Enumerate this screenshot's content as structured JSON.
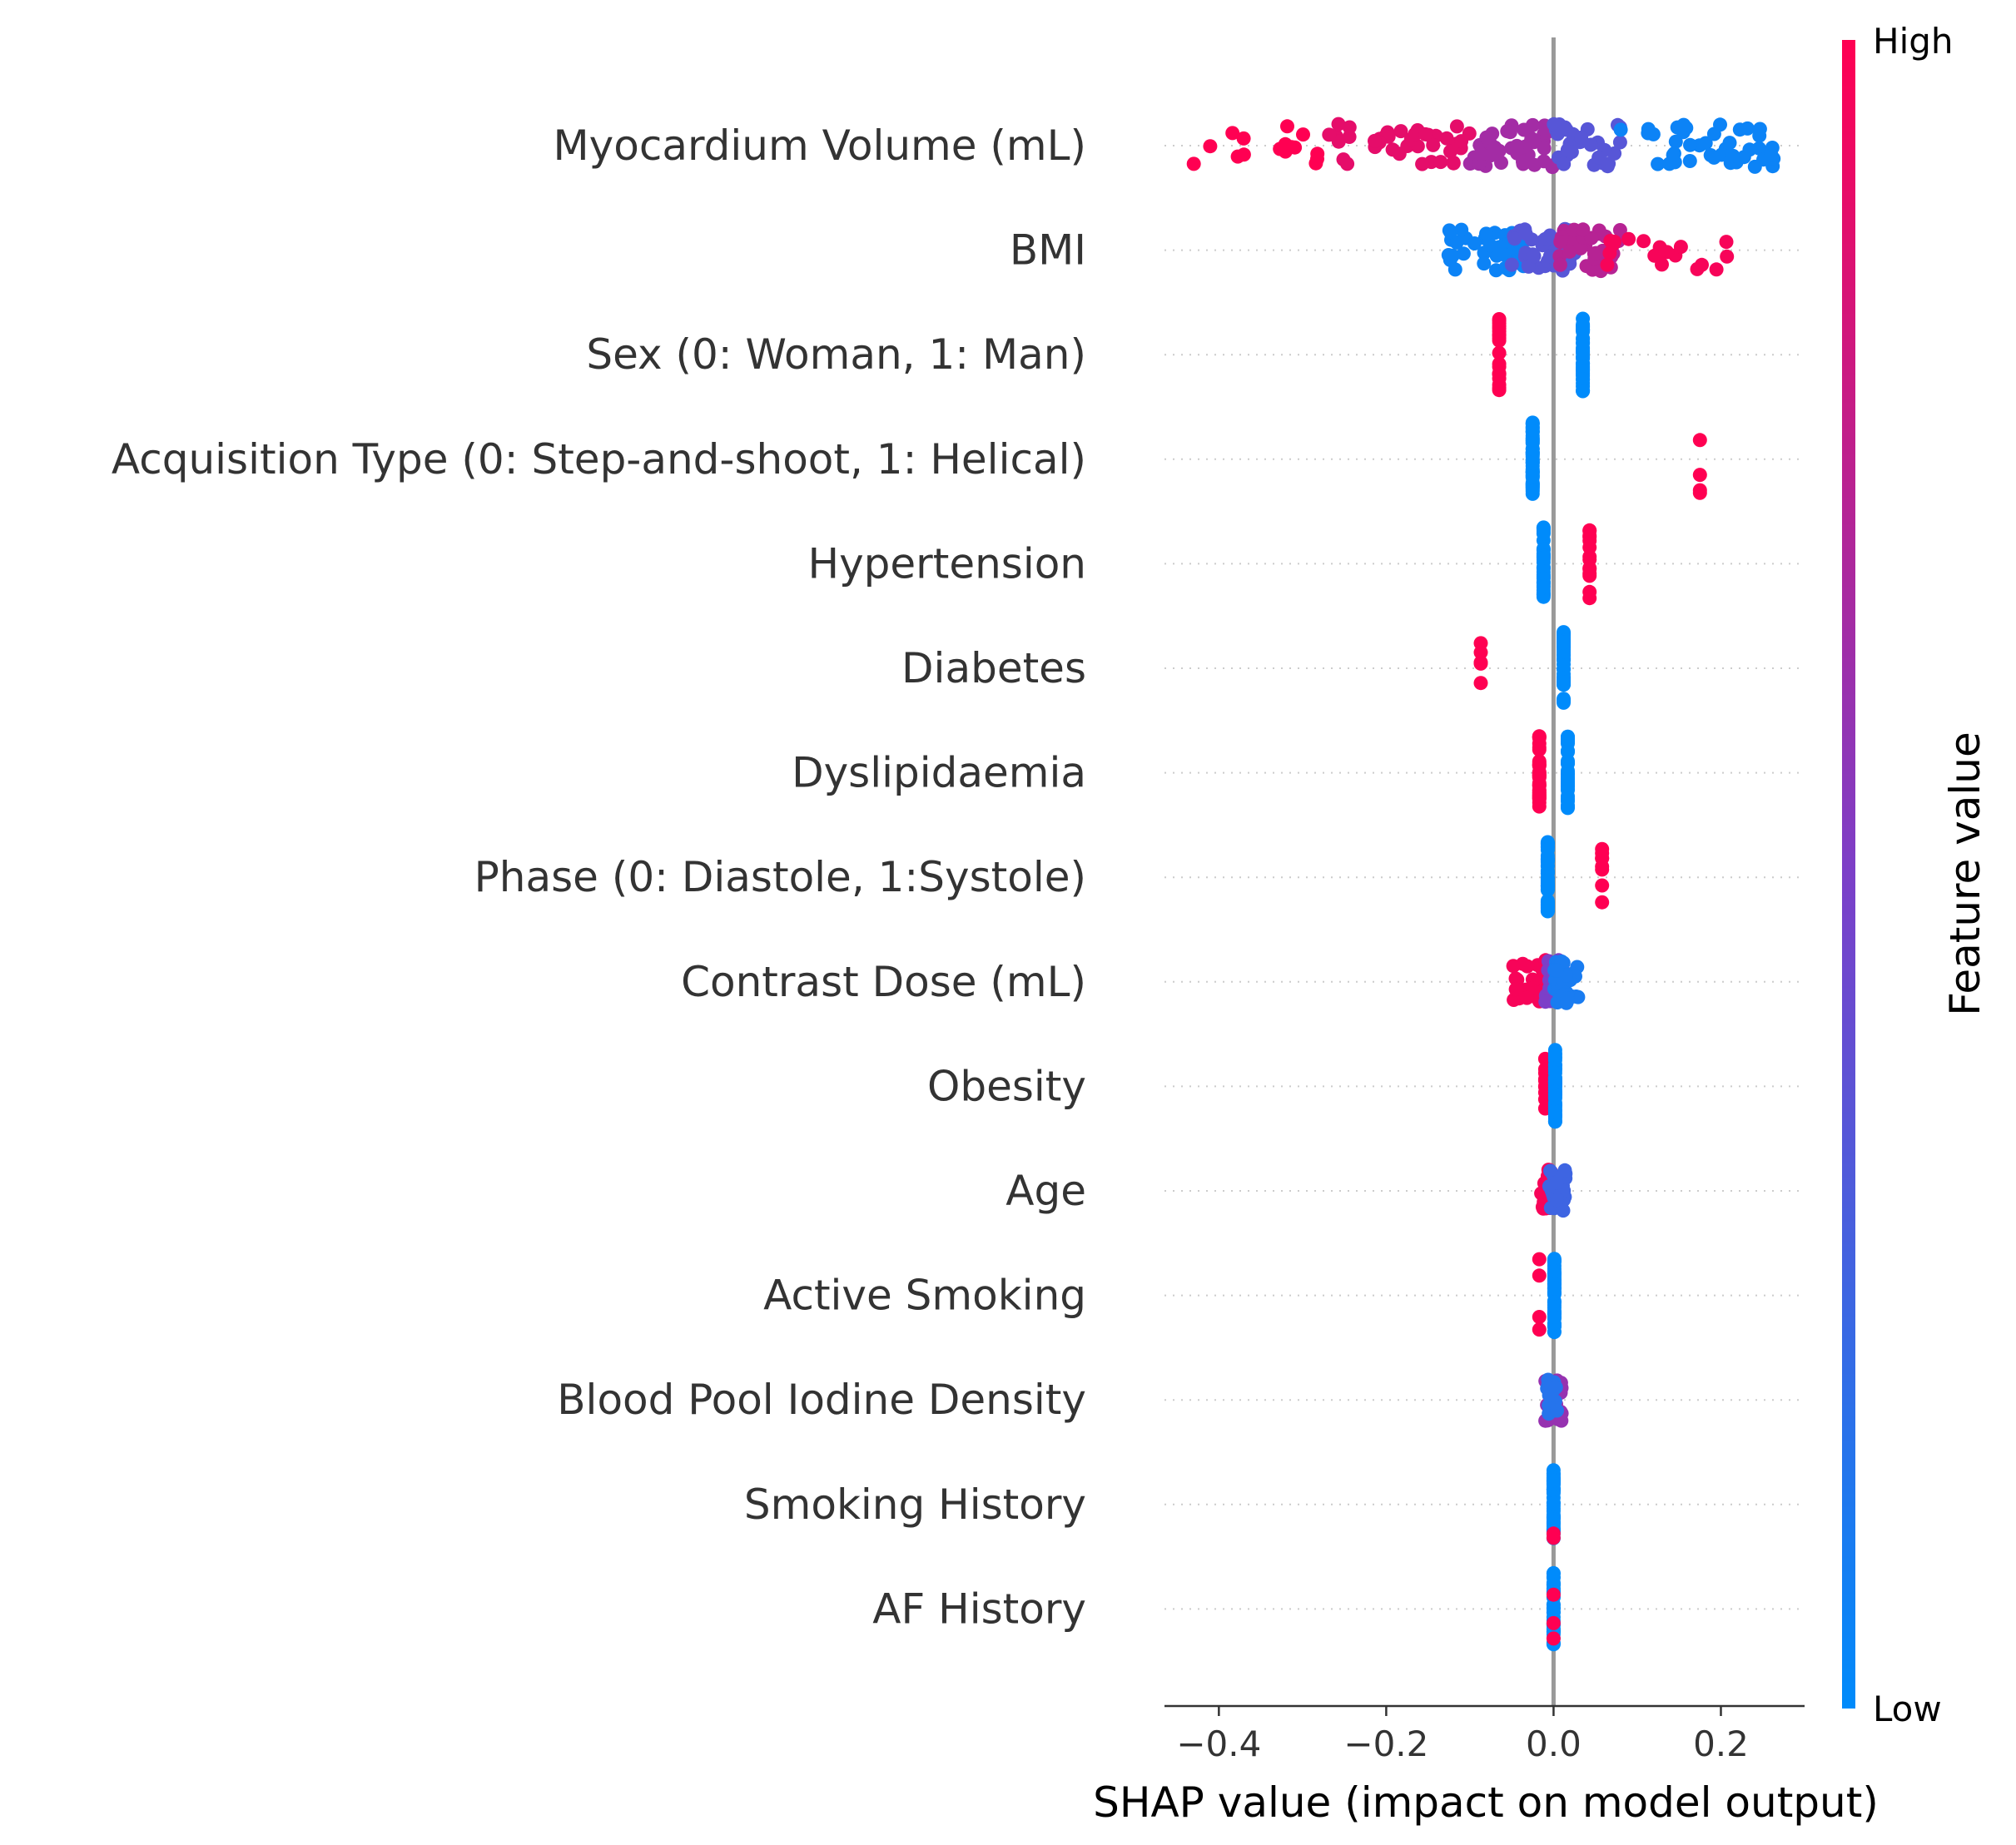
{
  "chart_data": {
    "type": "scatter",
    "subtype": "shap-beeswarm",
    "xlabel": "SHAP value (impact on model output)",
    "xlim": [
      -0.465,
      0.3
    ],
    "xticks": [
      -0.4,
      -0.2,
      0.0,
      0.2
    ],
    "xtick_labels": [
      "−0.4",
      "−0.2",
      "0.0",
      "0.2"
    ],
    "grid": "dotted horizontal row lines",
    "colorbar": {
      "title": "Feature value",
      "high_label": "High",
      "low_label": "Low",
      "low_color": "#008bfb",
      "mid_color": "#7c3fc8",
      "high_color": "#ff0052",
      "position": "right"
    },
    "features": [
      {
        "name": "Myocardium Volume (mL)",
        "groups": [
          {
            "min": -0.43,
            "max": -0.27,
            "n": 16,
            "color": 1.0
          },
          {
            "min": -0.27,
            "max": -0.1,
            "n": 40,
            "color": 0.9
          },
          {
            "min": -0.1,
            "max": 0.0,
            "n": 40,
            "color": 0.65
          },
          {
            "min": 0.0,
            "max": 0.08,
            "n": 30,
            "color": 0.35
          },
          {
            "min": 0.08,
            "max": 0.27,
            "n": 45,
            "color": 0.05
          }
        ]
      },
      {
        "name": "BMI",
        "groups": [
          {
            "min": -0.13,
            "max": -0.03,
            "n": 40,
            "color": 0.05
          },
          {
            "min": -0.05,
            "max": 0.03,
            "n": 45,
            "color": 0.35
          },
          {
            "min": 0.0,
            "max": 0.08,
            "n": 35,
            "color": 0.72
          },
          {
            "min": 0.06,
            "max": 0.21,
            "n": 20,
            "color": 0.97
          }
        ]
      },
      {
        "name": "Sex (0: Woman, 1: Man)",
        "groups": [
          {
            "min": -0.065,
            "max": -0.065,
            "n": 20,
            "color": 1.0
          },
          {
            "min": 0.035,
            "max": 0.035,
            "n": 40,
            "color": 0.0
          }
        ]
      },
      {
        "name": "Acquisition Type (0: Step-and-shoot, 1: Helical)",
        "groups": [
          {
            "min": -0.025,
            "max": -0.025,
            "n": 50,
            "color": 0.0
          },
          {
            "min": 0.175,
            "max": 0.175,
            "n": 4,
            "color": 1.0
          }
        ]
      },
      {
        "name": "Hypertension",
        "groups": [
          {
            "min": -0.012,
            "max": -0.012,
            "n": 40,
            "color": 0.0
          },
          {
            "min": 0.043,
            "max": 0.043,
            "n": 14,
            "color": 1.0
          }
        ]
      },
      {
        "name": "Diabetes",
        "groups": [
          {
            "min": -0.087,
            "max": -0.087,
            "n": 5,
            "color": 1.0
          },
          {
            "min": 0.012,
            "max": 0.012,
            "n": 40,
            "color": 0.0
          }
        ]
      },
      {
        "name": "Dyslipidaemia ",
        "groups": [
          {
            "min": -0.017,
            "max": -0.017,
            "n": 38,
            "color": 1.0
          },
          {
            "min": 0.017,
            "max": 0.017,
            "n": 38,
            "color": 0.0
          }
        ]
      },
      {
        "name": "Phase (0: Diastole, 1:Systole)",
        "groups": [
          {
            "min": -0.007,
            "max": -0.007,
            "n": 40,
            "color": 0.0
          },
          {
            "min": 0.058,
            "max": 0.058,
            "n": 8,
            "color": 1.0
          }
        ]
      },
      {
        "name": "Contrast Dose (mL)",
        "groups": [
          {
            "min": -0.05,
            "max": 0.0,
            "n": 30,
            "color": 0.97
          },
          {
            "min": -0.01,
            "max": 0.012,
            "n": 30,
            "color": 0.5
          },
          {
            "min": 0.0,
            "max": 0.03,
            "n": 30,
            "color": 0.1
          }
        ]
      },
      {
        "name": "Obesity",
        "groups": [
          {
            "min": -0.01,
            "max": -0.01,
            "n": 10,
            "color": 1.0
          },
          {
            "min": 0.002,
            "max": 0.002,
            "n": 50,
            "color": 0.0
          }
        ]
      },
      {
        "name": "Age",
        "groups": [
          {
            "min": -0.015,
            "max": 0.0,
            "n": 20,
            "color": 0.97
          },
          {
            "min": -0.005,
            "max": 0.015,
            "n": 30,
            "color": 0.25
          }
        ]
      },
      {
        "name": "Active Smoking",
        "groups": [
          {
            "min": -0.017,
            "max": -0.017,
            "n": 4,
            "color": 1.0
          },
          {
            "min": 0.001,
            "max": 0.001,
            "n": 50,
            "color": 0.0
          }
        ]
      },
      {
        "name": "Blood Pool Iodine Density",
        "groups": [
          {
            "min": -0.01,
            "max": 0.01,
            "n": 30,
            "color": 0.6
          },
          {
            "min": -0.008,
            "max": 0.005,
            "n": 20,
            "color": 0.15
          }
        ]
      },
      {
        "name": "Smoking History",
        "groups": [
          {
            "min": 0.0,
            "max": 0.0,
            "n": 45,
            "color": 0.0
          },
          {
            "min": 0.0,
            "max": 0.0,
            "n": 2,
            "color": 1.0
          }
        ]
      },
      {
        "name": "AF History",
        "groups": [
          {
            "min": 0.0,
            "max": 0.0,
            "n": 40,
            "color": 0.0
          },
          {
            "min": 0.0,
            "max": 0.0,
            "n": 3,
            "color": 1.0
          }
        ]
      }
    ]
  }
}
